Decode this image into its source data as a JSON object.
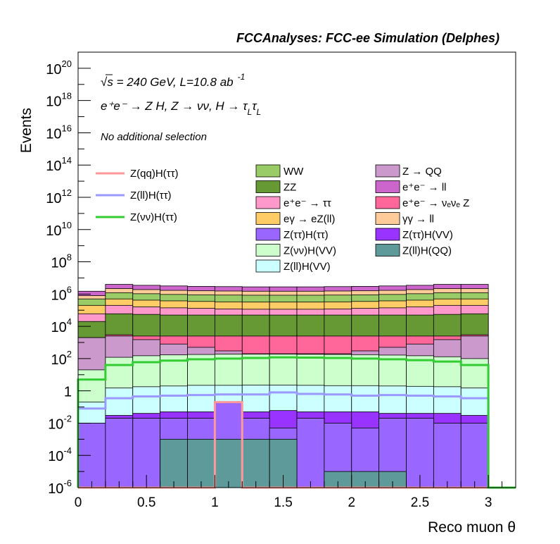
{
  "chart_data": {
    "type": "bar",
    "stacked": true,
    "log_y": true,
    "title": "FCCAnalyses: FCC-ee Simulation (Delphes)",
    "xlabel": "Reco muon θ",
    "ylabel": "Events",
    "xlim": [
      0,
      3.2
    ],
    "ylim": [
      1e-06,
      1e+21
    ],
    "x_ticks": [
      "0",
      "0.5",
      "1",
      "1.5",
      "2",
      "2.5",
      "3"
    ],
    "y_ticks": [
      {
        "v": 1e-06,
        "base": "10",
        "exp": "-6"
      },
      {
        "v": 0.0001,
        "base": "10",
        "exp": "-4"
      },
      {
        "v": 0.01,
        "base": "10",
        "exp": "-2"
      },
      {
        "v": 1,
        "base": "1",
        "exp": ""
      },
      {
        "v": 100.0,
        "base": "10",
        "exp": "2"
      },
      {
        "v": 10000.0,
        "base": "10",
        "exp": "4"
      },
      {
        "v": 1000000.0,
        "base": "10",
        "exp": "6"
      },
      {
        "v": 100000000.0,
        "base": "10",
        "exp": "8"
      },
      {
        "v": 10000000000.0,
        "base": "10",
        "exp": "10"
      },
      {
        "v": 1000000000000.0,
        "base": "10",
        "exp": "12"
      },
      {
        "v": 100000000000000.0,
        "base": "10",
        "exp": "14"
      },
      {
        "v": 1e+16,
        "base": "10",
        "exp": "16"
      },
      {
        "v": 1e+18,
        "base": "10",
        "exp": "18"
      },
      {
        "v": 1e+20,
        "base": "10",
        "exp": "20"
      }
    ],
    "annotations": {
      "line1_sqrt": "√s",
      "line1_rest": " = 240 GeV, L=10.8 ab",
      "line1_exp": "-1",
      "line2": "e⁺e⁻ → Z H, Z → νν, H → τ",
      "line2_sub1": "L",
      "line2_tau": "τ",
      "line2_sub2": "L",
      "selection": "No additional selection"
    },
    "bins": [
      0,
      0.2,
      0.4,
      0.6,
      0.8,
      1.0,
      1.2,
      1.4,
      1.6,
      1.8,
      2.0,
      2.2,
      2.4,
      2.6,
      2.8,
      3.0
    ],
    "stack_cumulative": [
      {
        "name": "Z(ll)H(QQ)",
        "color": "#5f9a9a",
        "values": [
          1e-06,
          1e-06,
          1e-06,
          0.001,
          0.001,
          0.001,
          0.001,
          0.001,
          1e-06,
          1e-05,
          1e-05,
          1e-05,
          1e-06,
          1e-06,
          1e-06
        ]
      },
      {
        "name": "Z(ττ)H(ττ)",
        "color": "#9966ff",
        "values": [
          0.01,
          0.02,
          0.02,
          0.02,
          0.02,
          0.2,
          0.02,
          0.005,
          0.02,
          0.01,
          0.005,
          0.02,
          0.02,
          0.01,
          0.01
        ]
      },
      {
        "name": "Z(ττ)H(VV)",
        "color": "#9933ff",
        "values": [
          0.01,
          0.03,
          0.04,
          0.05,
          0.05,
          0.05,
          0.05,
          0.06,
          0.05,
          0.05,
          0.05,
          0.04,
          0.04,
          0.04,
          0.03
        ]
      },
      {
        "name": "Z(ll)H(VV)",
        "color": "#ccffff",
        "values": [
          0.2,
          1.5,
          1.8,
          2.0,
          2.2,
          2.2,
          2.3,
          2.3,
          2.2,
          2.1,
          2.1,
          2.0,
          1.9,
          1.8,
          1.5
        ]
      },
      {
        "name": "Z(νν)H(VV)",
        "color": "#ccffcc",
        "values": [
          20,
          120,
          150,
          170,
          180,
          190,
          190,
          190,
          185,
          180,
          175,
          165,
          150,
          130,
          100
        ]
      },
      {
        "name": "Z → QQ",
        "color": "#cc99cc",
        "values": [
          2000,
          2500,
          1500,
          800,
          500,
          300,
          200,
          200,
          200,
          200,
          300,
          500,
          800,
          1500,
          2500
        ]
      },
      {
        "name": "e⁺e⁻ → νₑνₑ Z",
        "color": "#ff6699",
        "values": [
          2000,
          3000,
          2500,
          2500,
          2500,
          2500,
          2500,
          2500,
          2500,
          2500,
          2500,
          2500,
          2500,
          2500,
          3000
        ]
      },
      {
        "name": "ZZ",
        "color": "#669933",
        "values": [
          20000,
          60000,
          55000,
          50000,
          50000,
          50000,
          50000,
          50000,
          50000,
          50000,
          50000,
          50000,
          50000,
          55000,
          60000
        ]
      },
      {
        "name": "e⁺e⁻ → ττ",
        "color": "#ff99cc",
        "values": [
          60000,
          200000,
          160000,
          140000,
          130000,
          120000,
          115000,
          115000,
          115000,
          120000,
          130000,
          140000,
          160000,
          200000,
          200000
        ]
      },
      {
        "name": "eγ → eZ(ll)",
        "color": "#ffcc66",
        "values": [
          200000,
          500000,
          420000,
          380000,
          350000,
          330000,
          320000,
          320000,
          320000,
          330000,
          350000,
          380000,
          420000,
          500000,
          500000
        ]
      },
      {
        "name": "WW",
        "color": "#99cc66",
        "values": [
          500000,
          1200000,
          1050000,
          950000,
          900000,
          870000,
          850000,
          850000,
          850000,
          870000,
          900000,
          950000,
          1050000,
          1200000,
          1200000
        ]
      },
      {
        "name": "γγ → ll",
        "color": "#ffcc99",
        "values": [
          800000,
          2200000,
          1900000,
          1700000,
          1600000,
          1550000,
          1500000,
          1500000,
          1500000,
          1550000,
          1600000,
          1700000,
          1900000,
          2200000,
          2200000
        ]
      },
      {
        "name": "e⁺e⁻ → ll",
        "color": "#cc66cc",
        "values": [
          1500000,
          4000000,
          3500000,
          3200000,
          3000000,
          2900000,
          2800000,
          2800000,
          2800000,
          2900000,
          3000000,
          3200000,
          3500000,
          4000000,
          4000000
        ]
      }
    ],
    "signal_lines": [
      {
        "name": "Z(qq)H(ττ)",
        "color": "#ff9999",
        "values": [
          1e-06,
          1e-06,
          1e-06,
          1e-06,
          1e-06,
          0.2,
          1e-06,
          1e-06,
          1e-06,
          1e-06,
          1e-06,
          1e-06,
          1e-06,
          1e-06,
          1e-06
        ]
      },
      {
        "name": "Z(ll)H(ττ)",
        "color": "#9999ff",
        "values": [
          0.08,
          0.35,
          0.45,
          0.5,
          0.55,
          0.6,
          0.6,
          0.8,
          0.65,
          0.6,
          0.5,
          0.55,
          0.5,
          0.45,
          0.35
        ]
      },
      {
        "name": "Z(νν)H(ττ)",
        "color": "#33cc33",
        "values": [
          5,
          40,
          60,
          75,
          90,
          100,
          110,
          120,
          115,
          110,
          100,
          90,
          80,
          65,
          40
        ]
      }
    ],
    "legend_lines": [
      "Z(qq)H(ττ)",
      "Z(ll)H(ττ)",
      "Z(νν)H(ττ)"
    ],
    "legend_col1": [
      "WW",
      "ZZ",
      "e⁺e⁻ → ττ",
      "eγ → eZ(ll)",
      "Z(ττ)H(ττ)",
      "Z(νν)H(VV)",
      "Z(ll)H(VV)"
    ],
    "legend_col2": [
      "Z → QQ",
      "e⁺e⁻ → ll",
      "e⁺e⁻ → νₑνₑ Z",
      "γγ → ll",
      "Z(ττ)H(VV)",
      "Z(ll)H(QQ)"
    ]
  }
}
